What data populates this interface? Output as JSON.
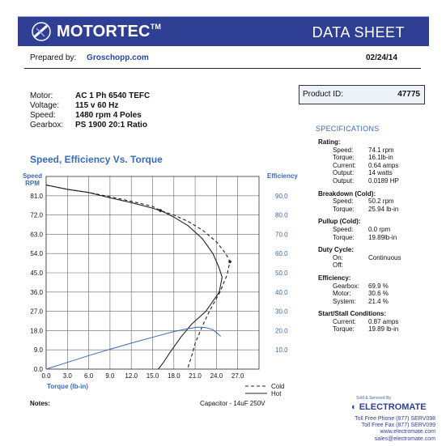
{
  "header": {
    "brand": "MOTORTEC",
    "trademark": "TM",
    "title": "DATA SHEET",
    "colors": {
      "band": "#2f3f94",
      "accent": "#3a6ab4"
    }
  },
  "prepared": {
    "label": "Prepared by:",
    "value": "Groschopp.com"
  },
  "date": "02/24/14",
  "motor": [
    {
      "label": "Motor:",
      "value": "AC 1 Ph  6540 TEFC"
    },
    {
      "label": "Voltage:",
      "value": "115 v 60 Hz"
    },
    {
      "label": "Speed:",
      "value": "1480 rpm   4 Poles"
    },
    {
      "label": "Gearbox:",
      "value": "PS 1900    20:1 Ratio"
    }
  ],
  "product": {
    "label": "Product ID:",
    "value": "47775"
  },
  "specifications": {
    "title": "SPECIFICATIONS",
    "groups": [
      {
        "title": "Rating:",
        "items": [
          {
            "k": "Speed:",
            "v": "74.1 rpm"
          },
          {
            "k": "Torque:",
            "v": "16.1lb-in"
          },
          {
            "k": "Current:",
            "v": "0.64 amps"
          },
          {
            "k": "Output:",
            "v": "14 watts"
          },
          {
            "k": "Output:",
            "v": "0.0189 HP"
          }
        ]
      },
      {
        "title": "Breakdown (Cold):",
        "items": [
          {
            "k": "Speed:",
            "v": "50.2 rpm"
          },
          {
            "k": "Torque:",
            "v": "25.94 lb-in"
          }
        ]
      },
      {
        "title": "Pullup (Cold):",
        "items": [
          {
            "k": "Speed:",
            "v": "0.0 rpm"
          },
          {
            "k": "Torque:",
            "v": "19.89lb-in"
          }
        ]
      },
      {
        "title": "Duty Cycle:",
        "items": [
          {
            "k": "On:",
            "v": "Continuous"
          },
          {
            "k": "Off:",
            "v": ""
          }
        ]
      },
      {
        "title": "Efficiency:",
        "items": [
          {
            "k": "Gearbox:",
            "v": "69.9 %"
          },
          {
            "k": "Motor:",
            "v": "30.6 %"
          },
          {
            "k": "System:",
            "v": "21.4 %"
          }
        ]
      },
      {
        "title": "Start/Stall Conditions:",
        "items": [
          {
            "k": "Current:",
            "v": "0.87 amps"
          },
          {
            "k": "Torque:",
            "v": "19.89 lb-in"
          }
        ]
      }
    ]
  },
  "chart_data": {
    "type": "line",
    "title": "Speed, Efficiency Vs. Torque",
    "xlabel": "Torque  (lb-in)",
    "ylabel": "Speed RPM",
    "y2label": "Efficiency",
    "xlim": [
      0,
      30
    ],
    "ylim": [
      0,
      90
    ],
    "y2lim": [
      0,
      100
    ],
    "x_ticks": [
      "0.0",
      "3.0",
      "6.0",
      "9.0",
      "12.0",
      "15.0",
      "18.0",
      "21.0",
      "24.0",
      "27.0"
    ],
    "y_ticks": [
      "0.0",
      "9.0",
      "18.0",
      "27.0",
      "36.0",
      "45.0",
      "54.0",
      "63.0",
      "72.0",
      "81.0"
    ],
    "y2_ticks": [
      "10.0",
      "20.0",
      "30.0",
      "40.0",
      "50.0",
      "60.0",
      "70.0",
      "80.0",
      "90.0"
    ],
    "grid": true,
    "legend_position": "bottom-right",
    "series": [
      {
        "name": "Cold",
        "axis": "speed",
        "style": "dashed",
        "x": [
          0,
          3,
          6,
          9,
          12,
          15,
          16.1,
          18,
          20,
          22,
          24,
          25.3,
          25.9,
          25.5,
          24.5,
          23,
          22,
          21,
          20.5,
          19.9
        ],
        "y": [
          86,
          84,
          82.5,
          80.5,
          78.4,
          76,
          74.1,
          72,
          69,
          65,
          59.5,
          54,
          50.2,
          44,
          36,
          27,
          20,
          12,
          6,
          0
        ]
      },
      {
        "name": "Hot",
        "axis": "speed",
        "style": "solid",
        "x": [
          0,
          3,
          6,
          9,
          12,
          15,
          16.5,
          18,
          20,
          22,
          23.5,
          24.3,
          24.8,
          24.4,
          22.5,
          20.5,
          19,
          17.5,
          16.5,
          15.8
        ],
        "y": [
          86,
          84,
          82.5,
          80,
          77.8,
          75.2,
          73.5,
          71,
          67,
          61,
          54,
          48,
          43,
          36,
          27,
          21,
          15,
          8,
          3,
          0
        ]
      },
      {
        "name": "",
        "axis": "efficiency",
        "style": "solid",
        "x": [
          0,
          3,
          6,
          9,
          12,
          15,
          18,
          20,
          21.4,
          22.5,
          23.5,
          24.6
        ],
        "y": [
          0,
          3.5,
          7,
          10.3,
          13.5,
          16.5,
          19.5,
          21,
          21.8,
          21.5,
          20.5,
          17
        ]
      }
    ]
  },
  "legend": {
    "cold": "Cold",
    "hot": "Hot"
  },
  "footer": {
    "notes_label": "Notes:",
    "capacitor": "Capacitor - 14uF 250V",
    "sold_by": "Sold & Serviced By",
    "distributor": "ELECTROMATE",
    "contact": [
      "Toll Free Phone  (877) SERV098",
      "Toll Free Fax  (877) SERV099",
      "www.electromate.com",
      "sales@electromate.com"
    ]
  }
}
